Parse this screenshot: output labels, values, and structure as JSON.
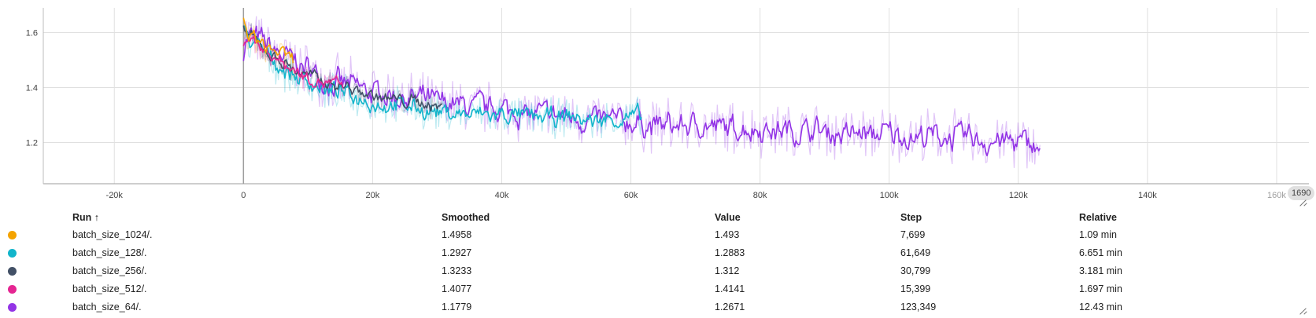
{
  "chart_data": {
    "type": "line",
    "title": "",
    "xlabel": "",
    "ylabel": "",
    "xlim": [
      -31000,
      165000
    ],
    "ylim": [
      1.05,
      1.69
    ],
    "x_ticks": [
      -20000,
      0,
      20000,
      40000,
      60000,
      80000,
      100000,
      120000,
      140000,
      160000
    ],
    "x_tick_labels": [
      "-20k",
      "0",
      "20k",
      "40k",
      "60k",
      "80k",
      "100k",
      "120k",
      "140k",
      "160k"
    ],
    "y_ticks": [
      1.2,
      1.4,
      1.6
    ],
    "y_tick_labels": [
      "1.2",
      "1.4",
      "1.6"
    ],
    "grid": true,
    "legend": "table-below",
    "series": [
      {
        "name": "batch_size_1024/.",
        "color": "#f4a300",
        "max_step": 7699,
        "x": [
          0,
          1000,
          2000,
          3000,
          4000,
          5000,
          6000,
          7000,
          7699
        ],
        "y": [
          1.6,
          1.58,
          1.57,
          1.55,
          1.54,
          1.53,
          1.52,
          1.5,
          1.4958
        ]
      },
      {
        "name": "batch_size_128/.",
        "color": "#12b5cb",
        "max_step": 61649,
        "x": [
          0,
          2000,
          4000,
          6000,
          8000,
          10000,
          12000,
          14000,
          16000,
          18000,
          20000,
          25000,
          30000,
          35000,
          40000,
          45000,
          50000,
          55000,
          60000,
          61649
        ],
        "y": [
          1.59,
          1.55,
          1.5,
          1.47,
          1.44,
          1.42,
          1.4,
          1.38,
          1.37,
          1.36,
          1.34,
          1.33,
          1.31,
          1.3,
          1.3,
          1.29,
          1.29,
          1.28,
          1.29,
          1.2927
        ]
      },
      {
        "name": "batch_size_256/.",
        "color": "#425066",
        "max_step": 30799,
        "x": [
          0,
          2000,
          4000,
          6000,
          8000,
          10000,
          12000,
          14000,
          16000,
          18000,
          20000,
          22000,
          24000,
          26000,
          28000,
          30000,
          30799
        ],
        "y": [
          1.6,
          1.56,
          1.52,
          1.49,
          1.46,
          1.44,
          1.42,
          1.41,
          1.4,
          1.38,
          1.37,
          1.36,
          1.35,
          1.35,
          1.34,
          1.33,
          1.3233
        ]
      },
      {
        "name": "batch_size_512/.",
        "color": "#e52592",
        "max_step": 15399,
        "x": [
          0,
          2000,
          4000,
          6000,
          8000,
          10000,
          12000,
          14000,
          15399
        ],
        "y": [
          1.6,
          1.56,
          1.52,
          1.49,
          1.46,
          1.44,
          1.42,
          1.41,
          1.4077
        ]
      },
      {
        "name": "batch_size_64/.",
        "color": "#9334e6",
        "max_step": 123349,
        "x": [
          0,
          2000,
          4000,
          6000,
          8000,
          10000,
          15000,
          20000,
          25000,
          30000,
          35000,
          40000,
          45000,
          50000,
          55000,
          60000,
          65000,
          70000,
          75000,
          80000,
          85000,
          90000,
          95000,
          100000,
          105000,
          110000,
          115000,
          120000,
          123349
        ],
        "y": [
          1.61,
          1.57,
          1.54,
          1.51,
          1.49,
          1.46,
          1.41,
          1.38,
          1.36,
          1.34,
          1.33,
          1.32,
          1.3,
          1.29,
          1.28,
          1.27,
          1.26,
          1.26,
          1.25,
          1.25,
          1.24,
          1.24,
          1.23,
          1.23,
          1.22,
          1.22,
          1.21,
          1.2,
          1.1779
        ]
      }
    ]
  },
  "hover_value": "1690",
  "table": {
    "headers": {
      "run": "Run ↑",
      "smoothed": "Smoothed",
      "value": "Value",
      "step": "Step",
      "relative": "Relative"
    },
    "rows": [
      {
        "run": "batch_size_1024/.",
        "smoothed": "1.4958",
        "value": "1.493",
        "step": "7,699",
        "relative": "1.09 min",
        "color": "#f4a300"
      },
      {
        "run": "batch_size_128/.",
        "smoothed": "1.2927",
        "value": "1.2883",
        "step": "61,649",
        "relative": "6.651 min",
        "color": "#12b5cb"
      },
      {
        "run": "batch_size_256/.",
        "smoothed": "1.3233",
        "value": "1.312",
        "step": "30,799",
        "relative": "3.181 min",
        "color": "#425066"
      },
      {
        "run": "batch_size_512/.",
        "smoothed": "1.4077",
        "value": "1.4141",
        "step": "15,399",
        "relative": "1.697 min",
        "color": "#e52592"
      },
      {
        "run": "batch_size_64/.",
        "smoothed": "1.1779",
        "value": "1.2671",
        "step": "123,349",
        "relative": "12.43 min",
        "color": "#9334e6"
      }
    ]
  }
}
